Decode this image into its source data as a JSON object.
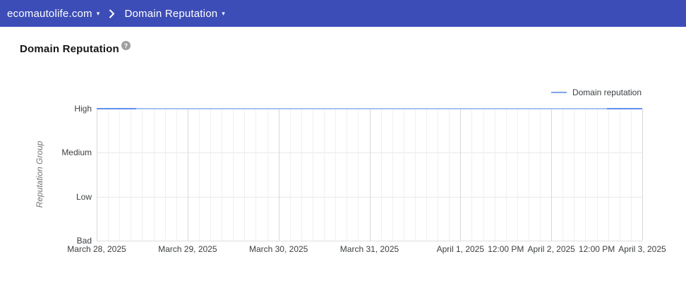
{
  "header": {
    "bg_color": "#3d4db7",
    "domain_selector": {
      "label": "ecomautolife.com"
    },
    "section_selector": {
      "label": "Domain Reputation"
    }
  },
  "icons": {
    "caret_down": "▾",
    "help": "?"
  },
  "page": {
    "title": "Domain Reputation"
  },
  "chart_data": {
    "type": "line",
    "title": "Domain Reputation",
    "xlabel": "",
    "ylabel": "Reputation Group",
    "y_categories": [
      "High",
      "Medium",
      "Low",
      "Bad"
    ],
    "x_range": [
      "March 28, 2025",
      "April 3, 2025"
    ],
    "x_tick_labels": [
      "March 28, 2025",
      "March 29, 2025",
      "March 30, 2025",
      "March 31, 2025",
      "April 1, 2025",
      "12:00 PM",
      "April 2, 2025",
      "12:00 PM",
      "April 3, 2025"
    ],
    "x_tick_positions": [
      0,
      0.16667,
      0.33333,
      0.5,
      0.66667,
      0.75,
      0.83333,
      0.91667,
      1
    ],
    "x_minor_divisions": 48,
    "x_major_every": 8,
    "grid": true,
    "legend": {
      "position": "top-right",
      "label": "Domain reputation",
      "swatch_color": "#7da4ee"
    },
    "series": [
      {
        "name": "Domain reputation",
        "color": "#6090ee",
        "color_faded": "#a6c1f1",
        "x": [
          "March 28, 2025",
          "March 29, 2025",
          "March 30, 2025",
          "March 31, 2025",
          "April 1, 2025",
          "April 2, 2025",
          "April 3, 2025"
        ],
        "values": [
          "High",
          "High",
          "High",
          "High",
          "High",
          "High",
          "High"
        ],
        "emphasized_segments": [
          [
            0,
            0.072
          ],
          [
            0.9353,
            1
          ]
        ]
      }
    ]
  }
}
